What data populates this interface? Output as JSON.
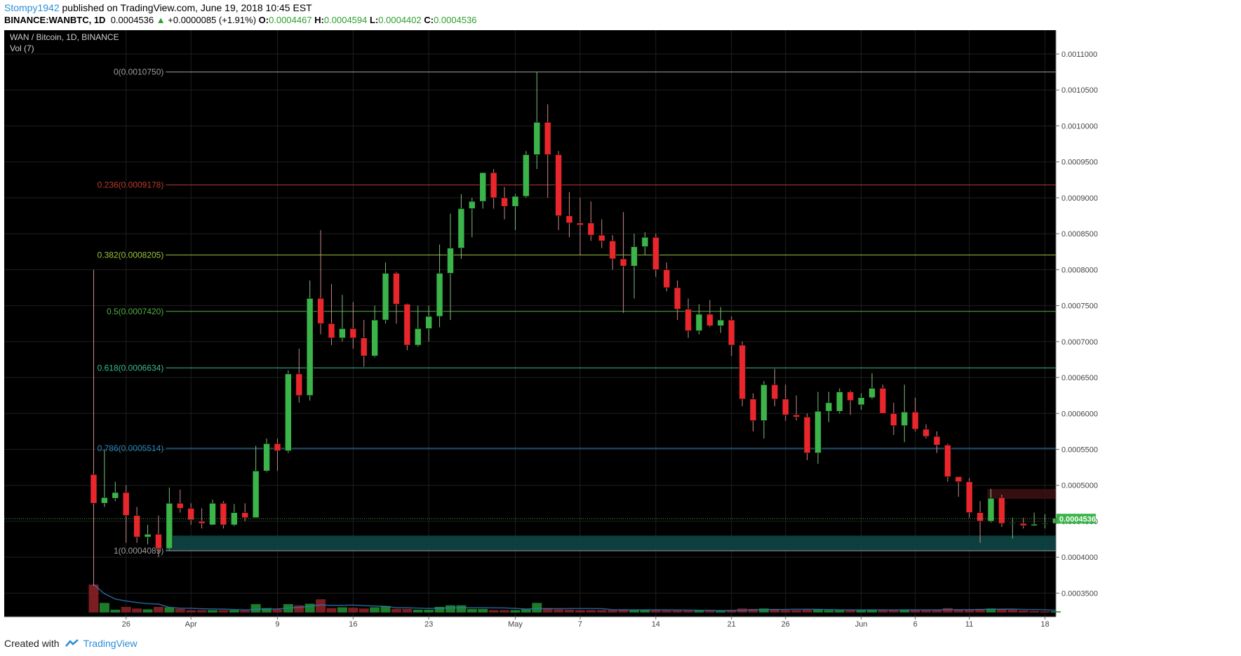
{
  "header": {
    "user": "Stompy1942",
    "published": "published on TradingView.com, June 19, 2018 10:45 EST",
    "symbol": "BINANCE:WANBTC, 1D",
    "last": "0.0004536",
    "up_arrow": "▲",
    "change": "+0.0000085 (+1.91%)",
    "o_label": "O:",
    "o": "0.0004467",
    "h_label": "H:",
    "h": "0.0004594",
    "l_label": "L:",
    "l": "0.0004402",
    "c_label": "C:",
    "c": "0.0004536"
  },
  "footer": {
    "created": "Created with",
    "brand": "TradingView"
  },
  "colors": {
    "background": "#000000",
    "up": "#53b987",
    "down": "#eb4d5c",
    "candle_up": "#3bb44a",
    "candle_down": "#e8262b",
    "grid": "#1f1f1f",
    "axis_text": "#444444",
    "price_tag": "#3bb44a",
    "support_band": "#0d4645",
    "resistance_band": "#3a0f12"
  },
  "chart_data": {
    "type": "candlestick",
    "title": "WAN / Bitcoin, 1D, BINANCE",
    "indicator": "Vol (7)",
    "y_ticks": [
      "0.0011000",
      "0.0010500",
      "0.0010000",
      "0.0009500",
      "0.0009000",
      "0.0008500",
      "0.0008000",
      "0.0007500",
      "0.0007000",
      "0.0006500",
      "0.0006000",
      "0.0005500",
      "0.0005000",
      "0.0004500",
      "0.0004000",
      "0.0003500"
    ],
    "ylim": [
      0.0003172,
      0.0011332
    ],
    "x_labels": [
      {
        "idx": 3,
        "text": "26"
      },
      {
        "idx": 9,
        "text": "Apr"
      },
      {
        "idx": 17,
        "text": "9"
      },
      {
        "idx": 24,
        "text": "16"
      },
      {
        "idx": 31,
        "text": "23"
      },
      {
        "idx": 39,
        "text": "May"
      },
      {
        "idx": 45,
        "text": "7"
      },
      {
        "idx": 52,
        "text": "14"
      },
      {
        "idx": 59,
        "text": "21"
      },
      {
        "idx": 64,
        "text": "26"
      },
      {
        "idx": 71,
        "text": "Jun"
      },
      {
        "idx": 76,
        "text": "6"
      },
      {
        "idx": 81,
        "text": "11"
      },
      {
        "idx": 88,
        "text": "18"
      }
    ],
    "fib_levels": [
      {
        "label": "0(0.0010750)",
        "value": 0.001075,
        "color": "#9e9e9e"
      },
      {
        "label": "0.236(0.0009178)",
        "value": 0.0009178,
        "color": "#c0392b"
      },
      {
        "label": "0.382(0.0008205)",
        "value": 0.0008205,
        "color": "#9bc53d"
      },
      {
        "label": "0.5(0.0007420)",
        "value": 0.000742,
        "color": "#52b043"
      },
      {
        "label": "0.618(0.0006634)",
        "value": 0.0006634,
        "color": "#3cb98e"
      },
      {
        "label": "0.786(0.0005514)",
        "value": 0.0005514,
        "color": "#2e86c1"
      },
      {
        "label": "1(0.0004089)",
        "value": 0.0004089,
        "color": "#9e9e9e"
      }
    ],
    "last_price": "0.0004536",
    "support_band": [
      0.0004089,
      0.00043
    ],
    "resistance_band": [
      0.000481,
      0.000495
    ],
    "candles": [
      [
        0.000515,
        0.0008,
        0.00036,
        0.000475
      ],
      [
        0.000475,
        0.00055,
        0.00047,
        0.000483
      ],
      [
        0.000482,
        0.000505,
        0.000478,
        0.00049
      ],
      [
        0.00049,
        0.0005,
        0.00042,
        0.000458
      ],
      [
        0.000458,
        0.00047,
        0.00042,
        0.000428
      ],
      [
        0.000428,
        0.000445,
        0.000418,
        0.000432
      ],
      [
        0.000432,
        0.000458,
        0.0004,
        0.000412
      ],
      [
        0.000412,
        0.000497,
        0.00041,
        0.000475
      ],
      [
        0.000475,
        0.000494,
        0.000462,
        0.000468
      ],
      [
        0.000468,
        0.000475,
        0.000445,
        0.000452
      ],
      [
        0.00045,
        0.000468,
        0.00044,
        0.000447
      ],
      [
        0.000445,
        0.00048,
        0.000445,
        0.000475
      ],
      [
        0.000475,
        0.000478,
        0.00044,
        0.000445
      ],
      [
        0.000445,
        0.000474,
        0.000443,
        0.000462
      ],
      [
        0.000462,
        0.000475,
        0.00045,
        0.000455
      ],
      [
        0.000455,
        0.000555,
        0.000455,
        0.00052
      ],
      [
        0.00052,
        0.000565,
        0.000518,
        0.000558
      ],
      [
        0.000558,
        0.000565,
        0.00052,
        0.000548
      ],
      [
        0.000548,
        0.00066,
        0.000545,
        0.000655
      ],
      [
        0.000655,
        0.00069,
        0.000615,
        0.000625
      ],
      [
        0.000625,
        0.000785,
        0.000618,
        0.00076
      ],
      [
        0.00076,
        0.000855,
        0.00071,
        0.000725
      ],
      [
        0.000725,
        0.00078,
        0.000695,
        0.000705
      ],
      [
        0.000705,
        0.000765,
        0.0007,
        0.000718
      ],
      [
        0.000718,
        0.000755,
        0.00069,
        0.000705
      ],
      [
        0.000705,
        0.00073,
        0.000665,
        0.00068
      ],
      [
        0.00068,
        0.00075,
        0.000678,
        0.00073
      ],
      [
        0.00073,
        0.00081,
        0.000725,
        0.000795
      ],
      [
        0.000795,
        0.000797,
        0.000725,
        0.000752
      ],
      [
        0.000752,
        0.000753,
        0.000688,
        0.000695
      ],
      [
        0.000695,
        0.00075,
        0.000693,
        0.000718
      ],
      [
        0.000718,
        0.00075,
        0.0007,
        0.000735
      ],
      [
        0.000735,
        0.000835,
        0.00072,
        0.000795
      ],
      [
        0.000795,
        0.000878,
        0.00073,
        0.00083
      ],
      [
        0.00083,
        0.000905,
        0.000815,
        0.000885
      ],
      [
        0.000885,
        0.0009,
        0.000845,
        0.000895
      ],
      [
        0.000895,
        0.000935,
        0.000885,
        0.000935
      ],
      [
        0.000935,
        0.00094,
        0.000885,
        0.0009
      ],
      [
        0.0009,
        0.000915,
        0.00087,
        0.000888
      ],
      [
        0.000888,
        0.000905,
        0.000855,
        0.000902
      ],
      [
        0.000902,
        0.000965,
        0.0009,
        0.00096
      ],
      [
        0.00096,
        0.001075,
        0.00094,
        0.001005
      ],
      [
        0.001005,
        0.00103,
        0.0009,
        0.00096
      ],
      [
        0.00096,
        0.000965,
        0.000855,
        0.000875
      ],
      [
        0.000875,
        0.000908,
        0.000845,
        0.000865
      ],
      [
        0.000865,
        0.0009,
        0.00082,
        0.000862
      ],
      [
        0.000865,
        0.000895,
        0.00084,
        0.000848
      ],
      [
        0.000848,
        0.00087,
        0.00083,
        0.00084
      ],
      [
        0.00084,
        0.000848,
        0.0008,
        0.000815
      ],
      [
        0.000815,
        0.00088,
        0.00074,
        0.000805
      ],
      [
        0.000805,
        0.00085,
        0.00076,
        0.000832
      ],
      [
        0.000832,
        0.000852,
        0.00082,
        0.000845
      ],
      [
        0.000845,
        0.00085,
        0.00079,
        0.0008
      ],
      [
        0.0008,
        0.00081,
        0.00077,
        0.000775
      ],
      [
        0.000775,
        0.000785,
        0.00073,
        0.000745
      ],
      [
        0.000745,
        0.00076,
        0.000705,
        0.000715
      ],
      [
        0.000715,
        0.000752,
        0.00071,
        0.000738
      ],
      [
        0.000738,
        0.000758,
        0.00072,
        0.000722
      ],
      [
        0.000722,
        0.000748,
        0.000712,
        0.00073
      ],
      [
        0.00073,
        0.000735,
        0.00068,
        0.000695
      ],
      [
        0.000695,
        0.0007,
        0.00061,
        0.00062
      ],
      [
        0.00062,
        0.000628,
        0.000575,
        0.00059
      ],
      [
        0.00059,
        0.000645,
        0.000565,
        0.00064
      ],
      [
        0.00064,
        0.000662,
        0.00061,
        0.00062
      ],
      [
        0.00062,
        0.00064,
        0.00059,
        0.000598
      ],
      [
        0.000598,
        0.000625,
        0.00059,
        0.000595
      ],
      [
        0.000595,
        0.0006,
        0.000535,
        0.000545
      ],
      [
        0.000545,
        0.00063,
        0.00053,
        0.000603
      ],
      [
        0.000603,
        0.00063,
        0.000588,
        0.000615
      ],
      [
        0.000603,
        0.000635,
        0.0006,
        0.00063
      ],
      [
        0.00063,
        0.000632,
        0.000598,
        0.000618
      ],
      [
        0.000612,
        0.000628,
        0.000605,
        0.000622
      ],
      [
        0.000622,
        0.000656,
        0.00062,
        0.000635
      ],
      [
        0.000635,
        0.00064,
        0.0006,
        0.0006
      ],
      [
        0.0006,
        0.000615,
        0.00057,
        0.000583
      ],
      [
        0.000583,
        0.00064,
        0.00056,
        0.000602
      ],
      [
        0.000602,
        0.000622,
        0.000575,
        0.000578
      ],
      [
        0.000578,
        0.000585,
        0.000565,
        0.000568
      ],
      [
        0.000568,
        0.000575,
        0.000545,
        0.000556
      ],
      [
        0.000556,
        0.000558,
        0.000505,
        0.000512
      ],
      [
        0.000512,
        0.000512,
        0.000484,
        0.000505
      ],
      [
        0.000505,
        0.00051,
        0.000455,
        0.000462
      ],
      [
        0.000462,
        0.000478,
        0.00042,
        0.00045
      ],
      [
        0.00045,
        0.000495,
        0.000448,
        0.000482
      ],
      [
        0.000483,
        0.000487,
        0.000442,
        0.000447
      ],
      [
        0.000447,
        0.000455,
        0.000426,
        0.000448
      ],
      [
        0.000447,
        0.000455,
        0.00044,
        0.000444
      ],
      [
        0.000444,
        0.000462,
        0.000443,
        0.000446
      ],
      [
        0.000446,
        0.00046,
        0.00044,
        0.000447
      ],
      [
        0.000447,
        0.000459,
        0.00044,
        0.000454
      ]
    ],
    "volumes": [
      [
        70,
        0
      ],
      [
        24,
        1
      ],
      [
        7,
        1
      ],
      [
        14,
        0
      ],
      [
        10,
        0
      ],
      [
        8,
        1
      ],
      [
        14,
        0
      ],
      [
        13,
        1
      ],
      [
        9,
        0
      ],
      [
        6,
        0
      ],
      [
        6,
        0
      ],
      [
        6,
        1
      ],
      [
        6,
        0
      ],
      [
        6,
        1
      ],
      [
        5,
        0
      ],
      [
        21,
        1
      ],
      [
        11,
        1
      ],
      [
        8,
        0
      ],
      [
        21,
        1
      ],
      [
        18,
        0
      ],
      [
        22,
        1
      ],
      [
        33,
        0
      ],
      [
        11,
        0
      ],
      [
        13,
        1
      ],
      [
        12,
        0
      ],
      [
        10,
        0
      ],
      [
        13,
        1
      ],
      [
        16,
        1
      ],
      [
        9,
        0
      ],
      [
        9,
        0
      ],
      [
        7,
        1
      ],
      [
        7,
        1
      ],
      [
        14,
        1
      ],
      [
        18,
        1
      ],
      [
        18,
        1
      ],
      [
        9,
        1
      ],
      [
        9,
        1
      ],
      [
        6,
        0
      ],
      [
        6,
        0
      ],
      [
        6,
        1
      ],
      [
        8,
        1
      ],
      [
        24,
        1
      ],
      [
        10,
        0
      ],
      [
        8,
        0
      ],
      [
        7,
        0
      ],
      [
        6,
        0
      ],
      [
        6,
        0
      ],
      [
        6,
        0
      ],
      [
        6,
        0
      ],
      [
        8,
        0
      ],
      [
        7,
        1
      ],
      [
        7,
        1
      ],
      [
        6,
        0
      ],
      [
        5,
        0
      ],
      [
        5,
        0
      ],
      [
        5,
        0
      ],
      [
        5,
        1
      ],
      [
        5,
        0
      ],
      [
        4,
        1
      ],
      [
        6,
        0
      ],
      [
        10,
        0
      ],
      [
        9,
        0
      ],
      [
        10,
        1
      ],
      [
        9,
        0
      ],
      [
        6,
        0
      ],
      [
        6,
        0
      ],
      [
        7,
        0
      ],
      [
        8,
        1
      ],
      [
        6,
        1
      ],
      [
        6,
        1
      ],
      [
        6,
        0
      ],
      [
        6,
        1
      ],
      [
        7,
        1
      ],
      [
        6,
        0
      ],
      [
        7,
        0
      ],
      [
        7,
        1
      ],
      [
        6,
        0
      ],
      [
        6,
        0
      ],
      [
        6,
        0
      ],
      [
        11,
        0
      ],
      [
        7,
        0
      ],
      [
        7,
        0
      ],
      [
        9,
        0
      ],
      [
        10,
        1
      ],
      [
        9,
        0
      ],
      [
        7,
        0
      ],
      [
        5,
        0
      ],
      [
        4,
        0
      ],
      [
        3,
        0
      ],
      [
        3,
        1
      ]
    ]
  }
}
